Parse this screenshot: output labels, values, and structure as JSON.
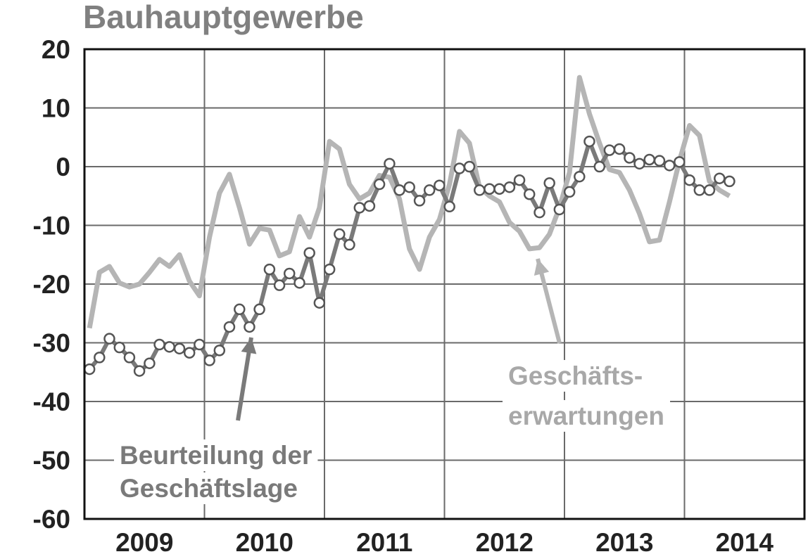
{
  "chart_data": {
    "type": "line",
    "title": "Bauhauptgewerbe",
    "x": [
      2009.042,
      2009.125,
      2009.208,
      2009.292,
      2009.375,
      2009.458,
      2009.542,
      2009.625,
      2009.708,
      2009.792,
      2009.875,
      2009.958,
      2010.042,
      2010.125,
      2010.208,
      2010.292,
      2010.375,
      2010.458,
      2010.542,
      2010.625,
      2010.708,
      2010.792,
      2010.875,
      2010.958,
      2011.042,
      2011.125,
      2011.208,
      2011.292,
      2011.375,
      2011.458,
      2011.542,
      2011.625,
      2011.708,
      2011.792,
      2011.875,
      2011.958,
      2012.042,
      2012.125,
      2012.208,
      2012.292,
      2012.375,
      2012.458,
      2012.542,
      2012.625,
      2012.708,
      2012.792,
      2012.875,
      2012.958,
      2013.042,
      2013.125,
      2013.208,
      2013.292,
      2013.375,
      2013.458,
      2013.542,
      2013.625,
      2013.708,
      2013.792,
      2013.875,
      2013.958,
      2014.042,
      2014.125,
      2014.208,
      2014.292,
      2014.375
    ],
    "series": [
      {
        "name": "Geschäftserwartungen",
        "color": "#b5b5b5",
        "markers": false,
        "values": [
          -27.5,
          -18,
          -17,
          -19.8,
          -20.5,
          -20,
          -18,
          -15.8,
          -17,
          -15,
          -19.5,
          -22,
          -12,
          -4.5,
          -1.3,
          -7,
          -13.2,
          -10.5,
          -10.8,
          -15.2,
          -14.5,
          -8.5,
          -12,
          -7,
          4.3,
          3,
          -3,
          -5.5,
          -4.5,
          -1.5,
          -1.8,
          -5.5,
          -14,
          -17.5,
          -12,
          -9,
          -3,
          6,
          4,
          -3.5,
          -5,
          -6,
          -9.5,
          -11,
          -14,
          -13.8,
          -11.5,
          -7,
          -1,
          15.2,
          9,
          4,
          -0.5,
          -1,
          -4,
          -8,
          -12.8,
          -12.5,
          -6,
          1,
          7,
          5.3,
          -2.5,
          -4,
          -5
        ]
      },
      {
        "name": "Beurteilung der Geschäftslage",
        "color": "#7a7a7a",
        "markers": true,
        "values": [
          -34.5,
          -32.5,
          -29.3,
          -30.8,
          -32.5,
          -34.8,
          -33.5,
          -30.3,
          -30.7,
          -31,
          -31.7,
          -30.3,
          -33,
          -31.3,
          -27.3,
          -24.3,
          -27.3,
          -24.3,
          -17.5,
          -20.2,
          -18.2,
          -19.8,
          -14.7,
          -23.2,
          -17.5,
          -11.5,
          -13.3,
          -7,
          -6.7,
          -3,
          0.5,
          -4,
          -3.5,
          -5.8,
          -4,
          -3.2,
          -6.8,
          -0.3,
          0,
          -4,
          -3.8,
          -3.8,
          -3.5,
          -2.3,
          -4.7,
          -7.8,
          -2.8,
          -7.3,
          -4.3,
          -1.7,
          4.3,
          0,
          2.8,
          3,
          1.5,
          0.5,
          1.2,
          1,
          0.2,
          0.8,
          -2.3,
          -4,
          -4,
          -2,
          -2.5
        ]
      }
    ],
    "annotations": [
      [
        "Beurteilung der",
        "Geschäftslage"
      ],
      [
        "Geschäfts-",
        "erwartungen"
      ]
    ],
    "xlim": [
      2009,
      2015
    ],
    "xticks": [
      {
        "value": 2009.5,
        "label": "2009"
      },
      {
        "value": 2010.5,
        "label": "2010"
      },
      {
        "value": 2011.5,
        "label": "2011"
      },
      {
        "value": 2012.5,
        "label": "2012"
      },
      {
        "value": 2013.5,
        "label": "2013"
      },
      {
        "value": 2014.5,
        "label": "2014"
      }
    ],
    "xgrid": [
      2010,
      2011,
      2012,
      2013,
      2014
    ],
    "ylim": [
      -60,
      20
    ],
    "yticks": [
      20,
      10,
      0,
      -10,
      -20,
      -30,
      -40,
      -50,
      -60
    ],
    "grid": true
  }
}
